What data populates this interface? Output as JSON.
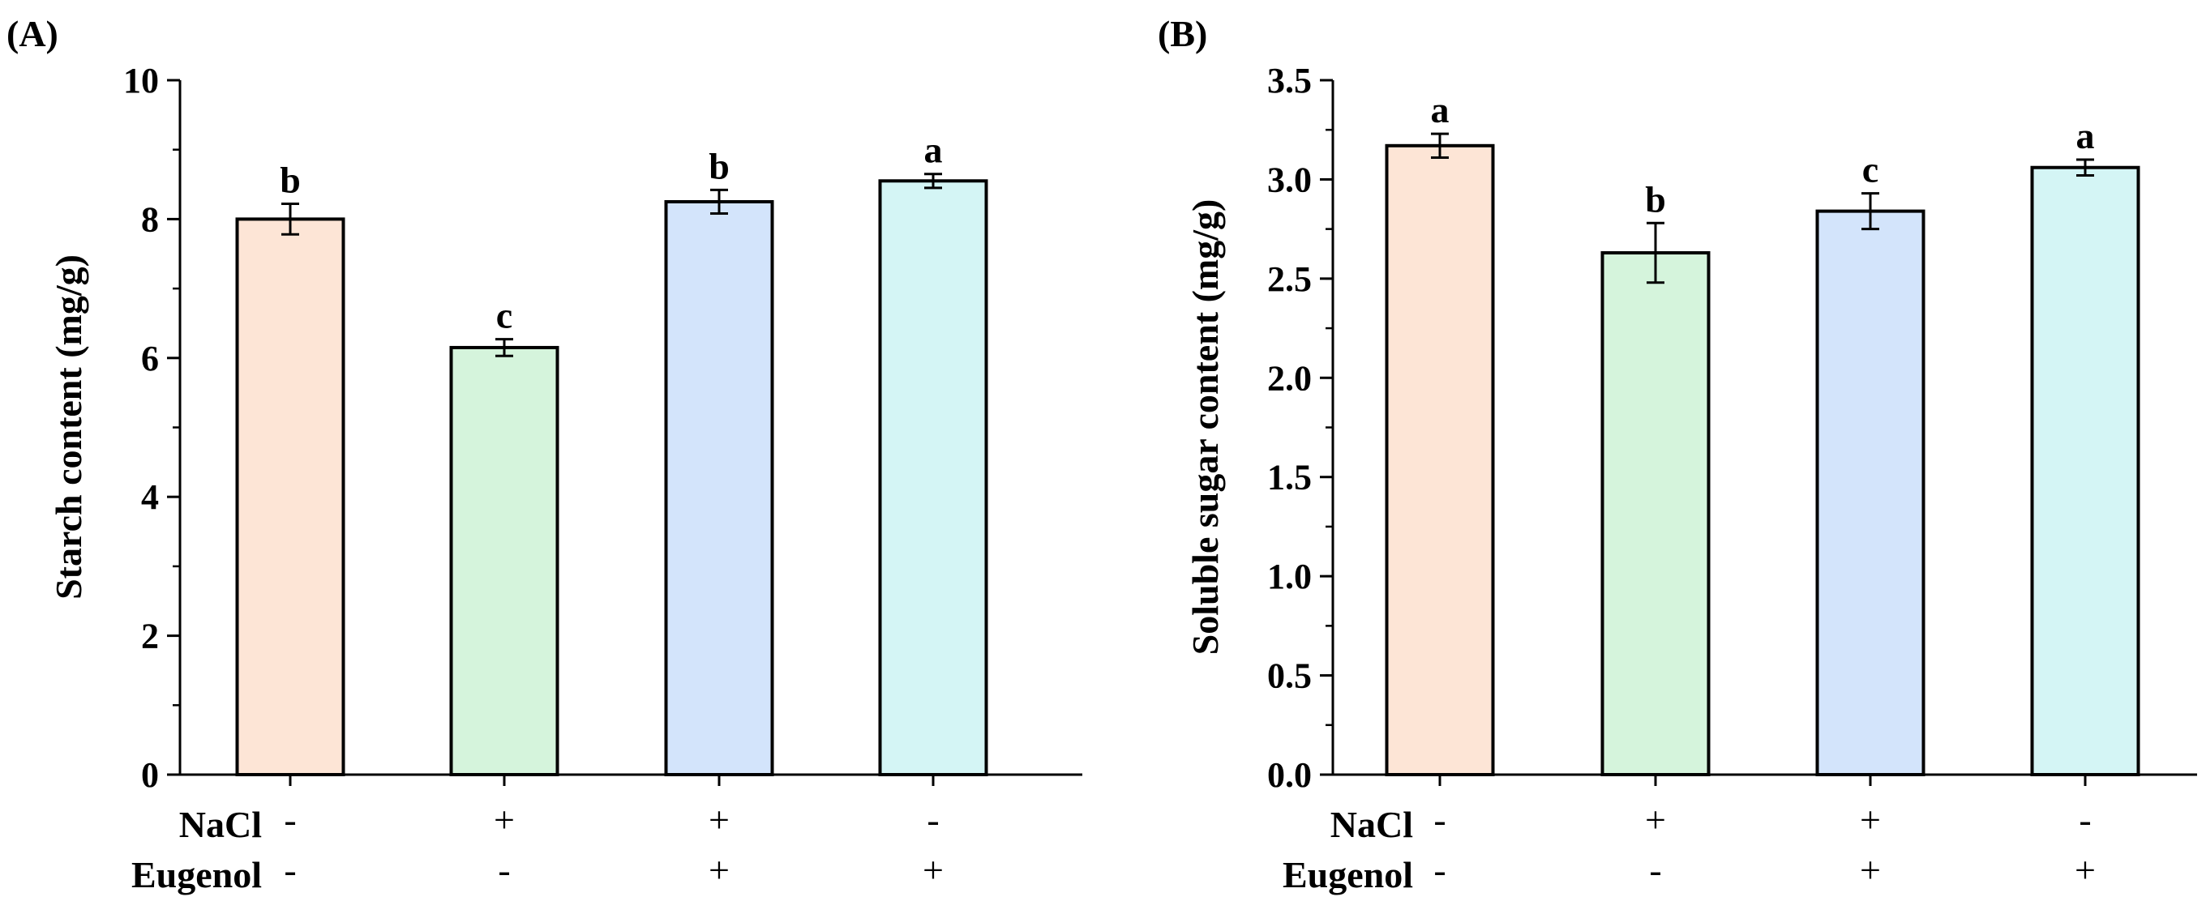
{
  "chart_data": [
    {
      "type": "bar",
      "panel_label": "(A)",
      "ylabel": "Starch content (mg/g)",
      "ylim": [
        0,
        10
      ],
      "yticks": [
        0,
        2,
        4,
        6,
        8,
        10
      ],
      "yticks_text": [
        "0",
        "2",
        "4",
        "6",
        "8",
        "10"
      ],
      "minor_ytick_step": 1,
      "categories": [
        "NaCl- / Eugenol-",
        "NaCl+ / Eugenol-",
        "NaCl+ / Eugenol+",
        "NaCl- / Eugenol+"
      ],
      "values": [
        8.0,
        6.15,
        8.25,
        8.55
      ],
      "errors": [
        0.22,
        0.12,
        0.17,
        0.1
      ],
      "significance": [
        "b",
        "c",
        "b",
        "a"
      ],
      "colors": [
        "#fde5d6",
        "#d5f4dc",
        "#d3e4fb",
        "#d4f5f5"
      ],
      "condition_rows": [
        {
          "label": "NaCl",
          "signs": [
            "-",
            "+",
            "+",
            "-"
          ]
        },
        {
          "label": "Eugenol",
          "signs": [
            "-",
            "-",
            "+",
            "+"
          ]
        }
      ]
    },
    {
      "type": "bar",
      "panel_label": "(B)",
      "ylabel": "Soluble sugar content (mg/g)",
      "ylim": [
        0,
        3.5
      ],
      "yticks": [
        0,
        0.5,
        1,
        1.5,
        2,
        2.5,
        3,
        3.5
      ],
      "yticks_text": [
        "0.0",
        "0.5",
        "1.0",
        "1.5",
        "2.0",
        "2.5",
        "3.0",
        "3.5"
      ],
      "minor_ytick_step": 0.25,
      "categories": [
        "NaCl- / Eugenol-",
        "NaCl+ / Eugenol-",
        "NaCl+ / Eugenol+",
        "NaCl- / Eugenol+"
      ],
      "values": [
        3.17,
        2.63,
        2.84,
        3.06
      ],
      "errors": [
        0.06,
        0.15,
        0.09,
        0.04
      ],
      "significance": [
        "a",
        "b",
        "c",
        "a"
      ],
      "colors": [
        "#fde5d6",
        "#d5f4dc",
        "#d3e4fb",
        "#d4f5f5"
      ],
      "condition_rows": [
        {
          "label": "NaCl",
          "signs": [
            "-",
            "+",
            "+",
            "-"
          ]
        },
        {
          "label": "Eugenol",
          "signs": [
            "-",
            "-",
            "+",
            "+"
          ]
        }
      ]
    }
  ]
}
